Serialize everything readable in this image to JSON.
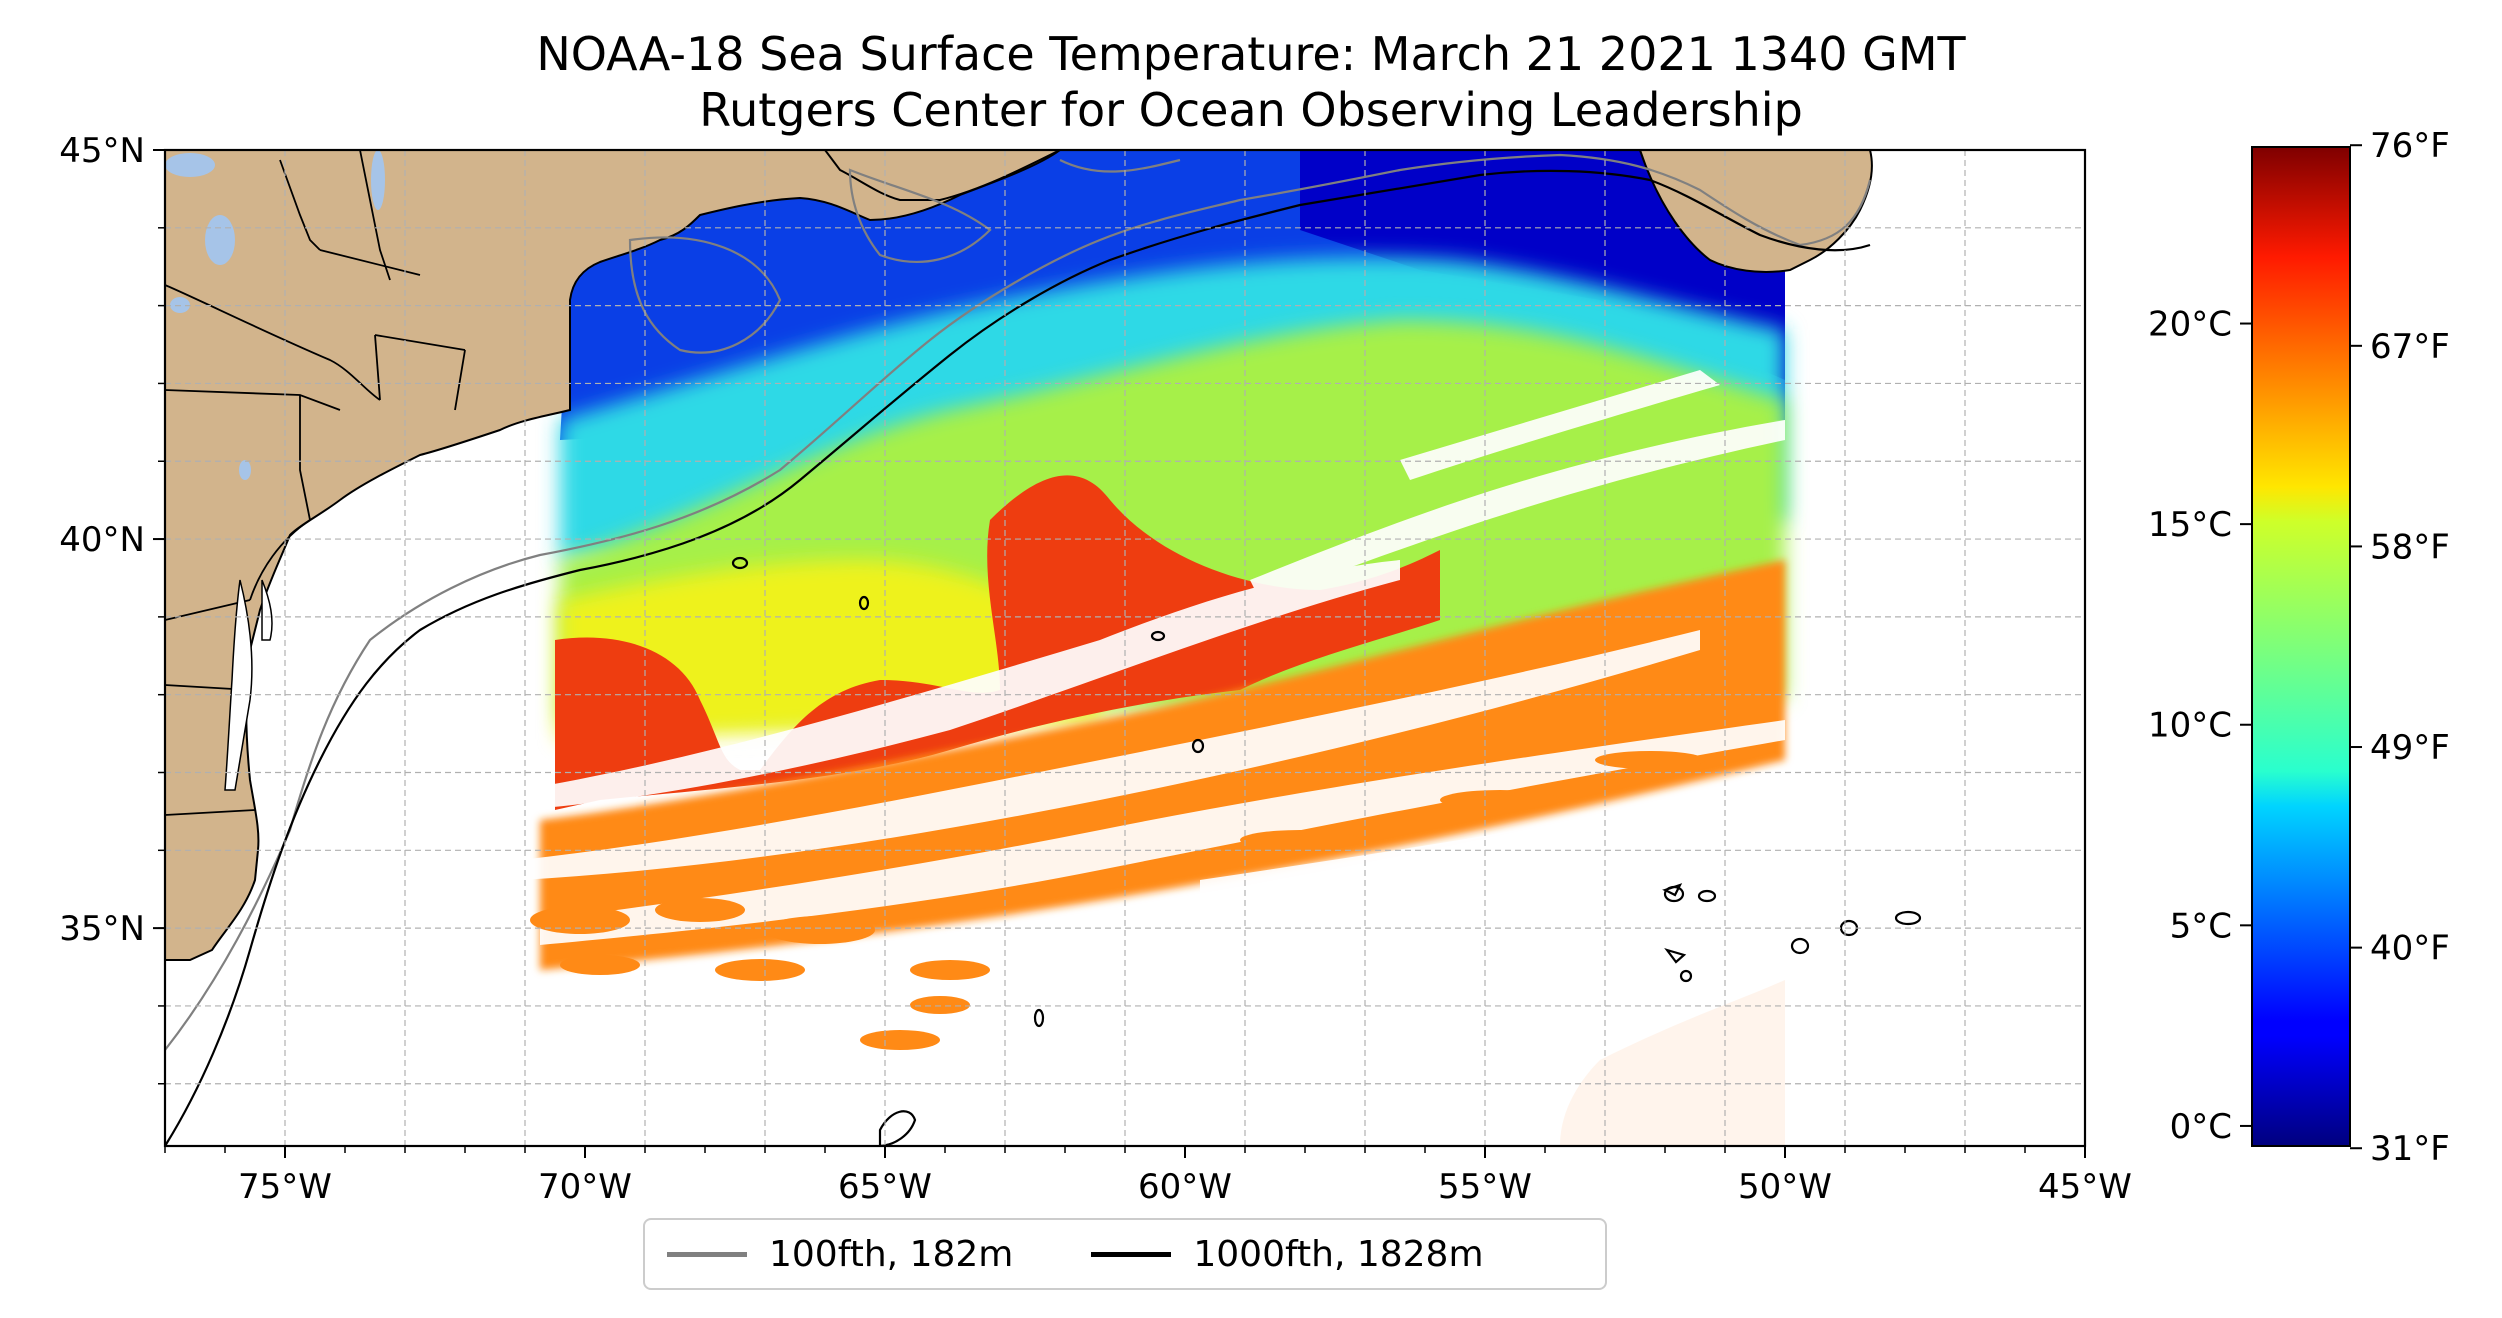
{
  "title": {
    "line1": "NOAA-18 Sea Surface Temperature: March 21 2021 1340 GMT",
    "line2": "Rutgers Center for Ocean Observing Leadership"
  },
  "map": {
    "lon_range": [
      -77,
      -45
    ],
    "lat_range": [
      32.2,
      45
    ],
    "lon_ticks": [
      {
        "value": -75,
        "label": "75°W"
      },
      {
        "value": -70,
        "label": "70°W"
      },
      {
        "value": -65,
        "label": "65°W"
      },
      {
        "value": -60,
        "label": "60°W"
      },
      {
        "value": -55,
        "label": "55°W"
      },
      {
        "value": -50,
        "label": "50°W"
      },
      {
        "value": -45,
        "label": "45°W"
      }
    ],
    "lat_ticks": [
      {
        "value": 45,
        "label": "45°N"
      },
      {
        "value": 40,
        "label": "40°N"
      },
      {
        "value": 35,
        "label": "35°N"
      }
    ],
    "gridlines": true,
    "land_color": "#d2b48c",
    "lake_color": "#a6c4e8",
    "isobath_100_color": "#808080",
    "isobath_1000_color": "#000000"
  },
  "legend": {
    "placement": "bottom-center",
    "items": [
      {
        "label": "100fth, 182m",
        "color": "#808080"
      },
      {
        "label": "1000fth, 1828m",
        "color": "#000000"
      }
    ]
  },
  "colorbar": {
    "colormap": "jet",
    "celsius_range": [
      -0.5,
      24.4
    ],
    "celsius_ticks": [
      {
        "value": 0,
        "label": "0°C"
      },
      {
        "value": 5,
        "label": "5°C"
      },
      {
        "value": 10,
        "label": "10°C"
      },
      {
        "value": 15,
        "label": "15°C"
      },
      {
        "value": 20,
        "label": "20°C"
      }
    ],
    "fahrenheit_ticks": [
      {
        "value": 31,
        "label": "31°F"
      },
      {
        "value": 40,
        "label": "40°F"
      },
      {
        "value": 49,
        "label": "49°F"
      },
      {
        "value": 58,
        "label": "58°F"
      },
      {
        "value": 67,
        "label": "67°F"
      },
      {
        "value": 76,
        "label": "76°F"
      }
    ]
  }
}
